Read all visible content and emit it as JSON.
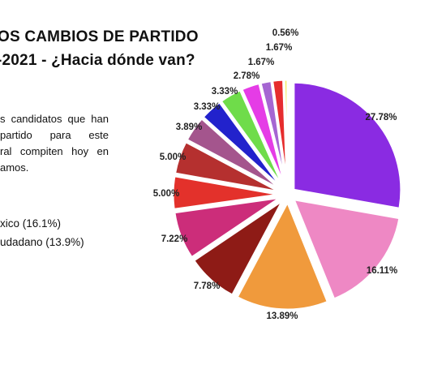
{
  "title": {
    "line1": "OS CAMBIOS DE PARTIDO",
    "line2": "-2021 - ¿Hacia dónde van?"
  },
  "paragraph": {
    "lines": [
      "s candidatos que han",
      "partido para este",
      "ral compiten hoy en",
      "amos."
    ]
  },
  "legend_fragments": [
    "xico  (16.1%)",
    "udadano (13.9%)"
  ],
  "chart_data": {
    "type": "pie",
    "values": [
      27.78,
      16.11,
      13.89,
      7.78,
      7.22,
      5.0,
      5.0,
      3.89,
      3.33,
      3.33,
      2.78,
      1.67,
      1.67,
      0.56
    ],
    "labels": [
      "27.78%",
      "16.11%",
      "13.89%",
      "7.78%",
      "7.22%",
      "5.00%",
      "5.00%",
      "3.89%",
      "3.33%",
      "3.33%",
      "2.78%",
      "1.67%",
      "1.67%",
      "0.56%"
    ],
    "colors": [
      "#8a2be2",
      "#ee88c4",
      "#f09a3c",
      "#8e1b16",
      "#cc2d7a",
      "#e3312b",
      "#b5302f",
      "#a4558d",
      "#2222cc",
      "#6fdc4a",
      "#e53ce6",
      "#a566d2",
      "#e62d2d",
      "#f3ee62"
    ],
    "start_angle": "12 o'clock, clockwise",
    "exploded": true
  }
}
